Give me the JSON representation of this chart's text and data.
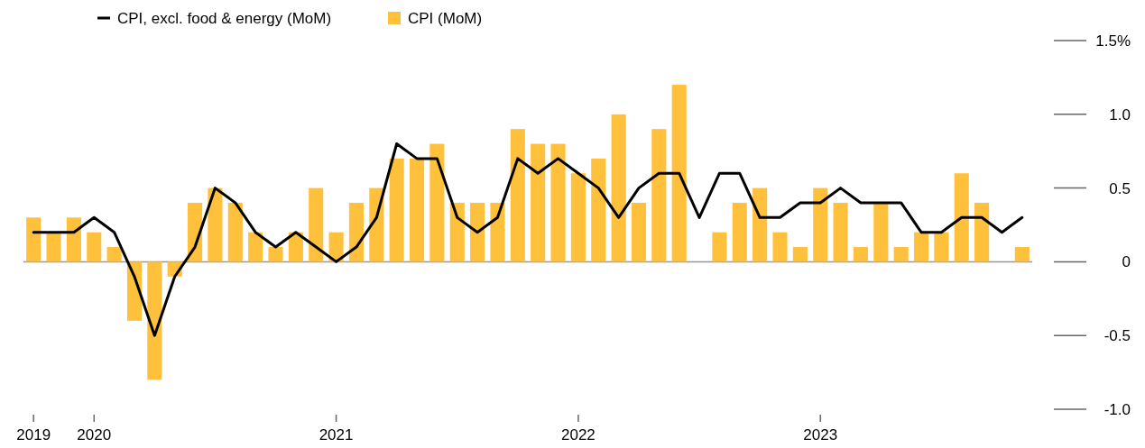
{
  "chart_data": {
    "type": "bar",
    "categories": [
      "2019",
      null,
      null,
      "2020",
      null,
      null,
      null,
      null,
      null,
      null,
      null,
      null,
      null,
      null,
      null,
      "2021",
      null,
      null,
      null,
      null,
      null,
      null,
      null,
      null,
      null,
      null,
      null,
      "2022",
      null,
      null,
      null,
      null,
      null,
      null,
      null,
      null,
      null,
      null,
      null,
      "2023",
      null,
      null,
      null,
      null,
      null,
      null,
      null,
      null,
      null,
      null
    ],
    "series": [
      {
        "name": "CPI, excl. food & energy (MoM)",
        "type": "line",
        "color": "#000000",
        "values": [
          0.2,
          0.2,
          0.2,
          0.3,
          0.2,
          -0.1,
          -0.5,
          -0.1,
          0.1,
          0.5,
          0.4,
          0.2,
          0.1,
          0.2,
          0.1,
          0.0,
          0.1,
          0.3,
          0.8,
          0.7,
          0.7,
          0.3,
          0.2,
          0.3,
          0.7,
          0.6,
          0.7,
          0.6,
          0.5,
          0.3,
          0.5,
          0.6,
          0.6,
          0.3,
          0.6,
          0.6,
          0.3,
          0.3,
          0.4,
          0.4,
          0.5,
          0.4,
          0.4,
          0.4,
          0.2,
          0.2,
          0.3,
          0.3,
          0.2,
          0.3
        ]
      },
      {
        "name": "CPI (MoM)",
        "color": "#ffc13b",
        "values": [
          0.3,
          0.2,
          0.3,
          0.2,
          0.1,
          -0.4,
          -0.8,
          -0.1,
          0.4,
          0.5,
          0.4,
          0.2,
          0.1,
          0.2,
          0.5,
          0.2,
          0.4,
          0.5,
          0.7,
          0.7,
          0.8,
          0.4,
          0.4,
          0.4,
          0.9,
          0.8,
          0.8,
          0.6,
          0.7,
          1.0,
          0.4,
          0.9,
          1.2,
          0.0,
          0.2,
          0.4,
          0.5,
          0.2,
          0.1,
          0.5,
          0.4,
          0.1,
          0.4,
          0.1,
          0.2,
          0.2,
          0.6,
          0.4,
          0.0,
          0.1
        ]
      }
    ],
    "ylim": [
      -1.0,
      1.5
    ],
    "yticks": [
      {
        "value": 1.5,
        "label": "1.5%"
      },
      {
        "value": 1.0,
        "label": "1.0"
      },
      {
        "value": 0.5,
        "label": "0.5"
      },
      0,
      {
        "value": -0.5,
        "label": "-0.5"
      },
      {
        "value": -1.0,
        "label": "-1.0"
      }
    ],
    "ref_lines": [
      {
        "axis": "y",
        "value": 0,
        "color": "#999999"
      }
    ],
    "grid": false,
    "legend": "top left"
  }
}
